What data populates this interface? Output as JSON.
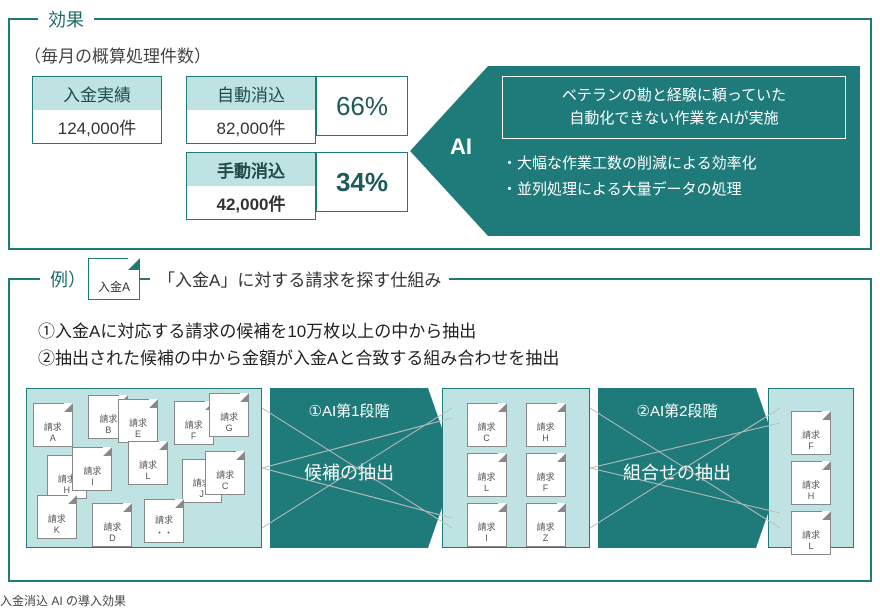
{
  "colors": {
    "brand": "#1f7a7a",
    "tint": "#bfe3e3",
    "text": "#333333"
  },
  "panel1": {
    "title": "効果",
    "subtitle": "（毎月の概算処理件数）",
    "jisseki": {
      "label": "入金実績",
      "value": "124,000件"
    },
    "auto": {
      "label": "自動消込",
      "value": "82,000件",
      "pct": "66%"
    },
    "manual": {
      "label": "手動消込",
      "value": "42,000件",
      "pct": "34%"
    },
    "ai_label": "AI",
    "ai_box_line1": "ベテランの勘と経験に頼っていた",
    "ai_box_line2": "自動化できない作業をAIが実施",
    "ai_bullets": [
      "大幅な作業工数の削減による効率化",
      "並列処理による大量データの処理"
    ]
  },
  "panel2": {
    "title_prefix": "例）",
    "income_card": "入金A",
    "title_rest": "「入金A」に対する請求を探す仕組み",
    "step1": "①入金Aに対応する請求の候補を10万枚以上の中から抽出",
    "step2": "②抽出された候補の中から金額が入金Aと合致する組み合わせを抽出",
    "stage1_docs": [
      "請求A",
      "請求B",
      "請求E",
      "請求F",
      "請求G",
      "請求H",
      "請求I",
      "請求L",
      "請求J",
      "請求C",
      "請求K",
      "請求D",
      "請求・・"
    ],
    "arrow1": {
      "title": "①AI第1段階",
      "body": "候補の抽出"
    },
    "stage2_docs": [
      "請求C",
      "請求H",
      "請求L",
      "請求F",
      "請求I",
      "請求Z"
    ],
    "arrow2": {
      "title": "②AI第2段階",
      "body": "組合せの抽出"
    },
    "stage3_docs": [
      "請求F",
      "請求H",
      "請求L"
    ]
  },
  "caption": "入金消込 AI の導入効果"
}
